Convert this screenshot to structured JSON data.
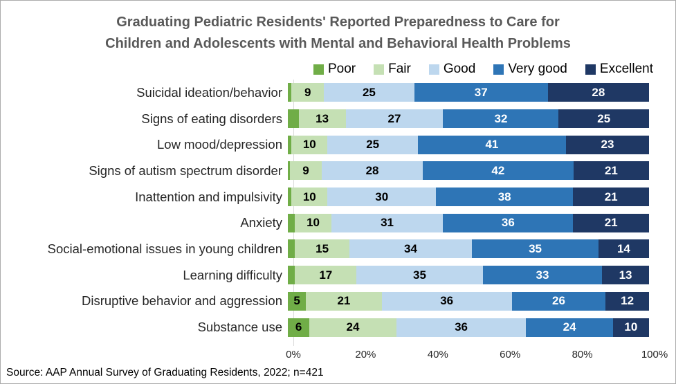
{
  "title": {
    "line1": "Graduating Pediatric Residents' Reported Preparedness to Care for",
    "line2": "Children and Adolescents with Mental and Behavioral Health Problems",
    "color": "#595959"
  },
  "source_note": "Source: AAP Annual Survey of Graduating Residents, 2022; n=421",
  "chart_data": {
    "type": "bar",
    "stacked": true,
    "orientation": "horizontal",
    "title": "Graduating Pediatric Residents' Reported Preparedness to Care for Children and Adolescents with Mental and Behavioral Health Problems",
    "categories": [
      "Suicidal ideation/behavior",
      "Signs of eating disorders",
      "Low mood/depression",
      "Signs of autism spectrum disorder",
      "Inattention and impulsivity",
      "Anxiety",
      "Social-emotional issues in young children",
      "Learning difficulty",
      "Disruptive behavior and aggression",
      "Substance use"
    ],
    "series": [
      {
        "name": "Poor",
        "color": "#70AD47",
        "label_color": "#000000",
        "values": [
          1,
          3,
          1,
          0.5,
          1,
          2,
          2,
          2,
          5,
          6
        ]
      },
      {
        "name": "Fair",
        "color": "#C5E0B4",
        "label_color": "#000000",
        "values": [
          9,
          13,
          10,
          9,
          10,
          10,
          15,
          17,
          21,
          24
        ]
      },
      {
        "name": "Good",
        "color": "#BDD7EE",
        "label_color": "#000000",
        "values": [
          25,
          27,
          25,
          28,
          30,
          31,
          34,
          35,
          36,
          36
        ]
      },
      {
        "name": "Very good",
        "color": "#2E75B6",
        "label_color": "#FFFFFF",
        "values": [
          37,
          32,
          41,
          42,
          38,
          36,
          35,
          33,
          26,
          24
        ]
      },
      {
        "name": "Excellent",
        "color": "#1F3864",
        "label_color": "#FFFFFF",
        "values": [
          28,
          25,
          23,
          21,
          21,
          21,
          14,
          13,
          12,
          10
        ]
      }
    ],
    "x_axis": {
      "min": 0,
      "max": 100,
      "ticks": [
        "0%",
        "20%",
        "40%",
        "60%",
        "80%",
        "100%"
      ]
    },
    "legend_position": "top-right",
    "gridlines": false,
    "data_label_min_shown": 5
  }
}
